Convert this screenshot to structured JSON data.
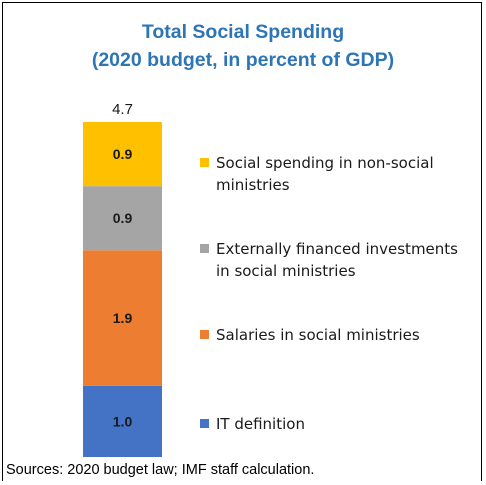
{
  "chart_data": {
    "type": "bar",
    "stacked": true,
    "title": "Total Social Spending",
    "subtitle": "(2020 budget, in percent of GDP)",
    "total_label": "4.7",
    "ylim": [
      0,
      4.7
    ],
    "series": [
      {
        "name": "IT definition",
        "value": 1.0,
        "label": "1.0",
        "color": "#4472c4"
      },
      {
        "name": "Salaries in social ministries",
        "value": 1.9,
        "label": "1.9",
        "color": "#ed7d31"
      },
      {
        "name": "Externally financed investments in social ministries",
        "value": 0.9,
        "label": "0.9",
        "color": "#a5a5a5"
      },
      {
        "name": "Social spending in non-social ministries",
        "value": 0.9,
        "label": "0.9",
        "color": "#ffc000"
      }
    ],
    "legend": {
      "placement": "right",
      "lines": [
        [
          "Social spending in non-social",
          "ministries"
        ],
        [
          "Externally financed investments",
          "in social ministries"
        ],
        [
          "Salaries in social ministries"
        ],
        [
          "IT definition"
        ]
      ]
    },
    "source": "Sources: 2020 budget law; IMF staff calculation."
  }
}
